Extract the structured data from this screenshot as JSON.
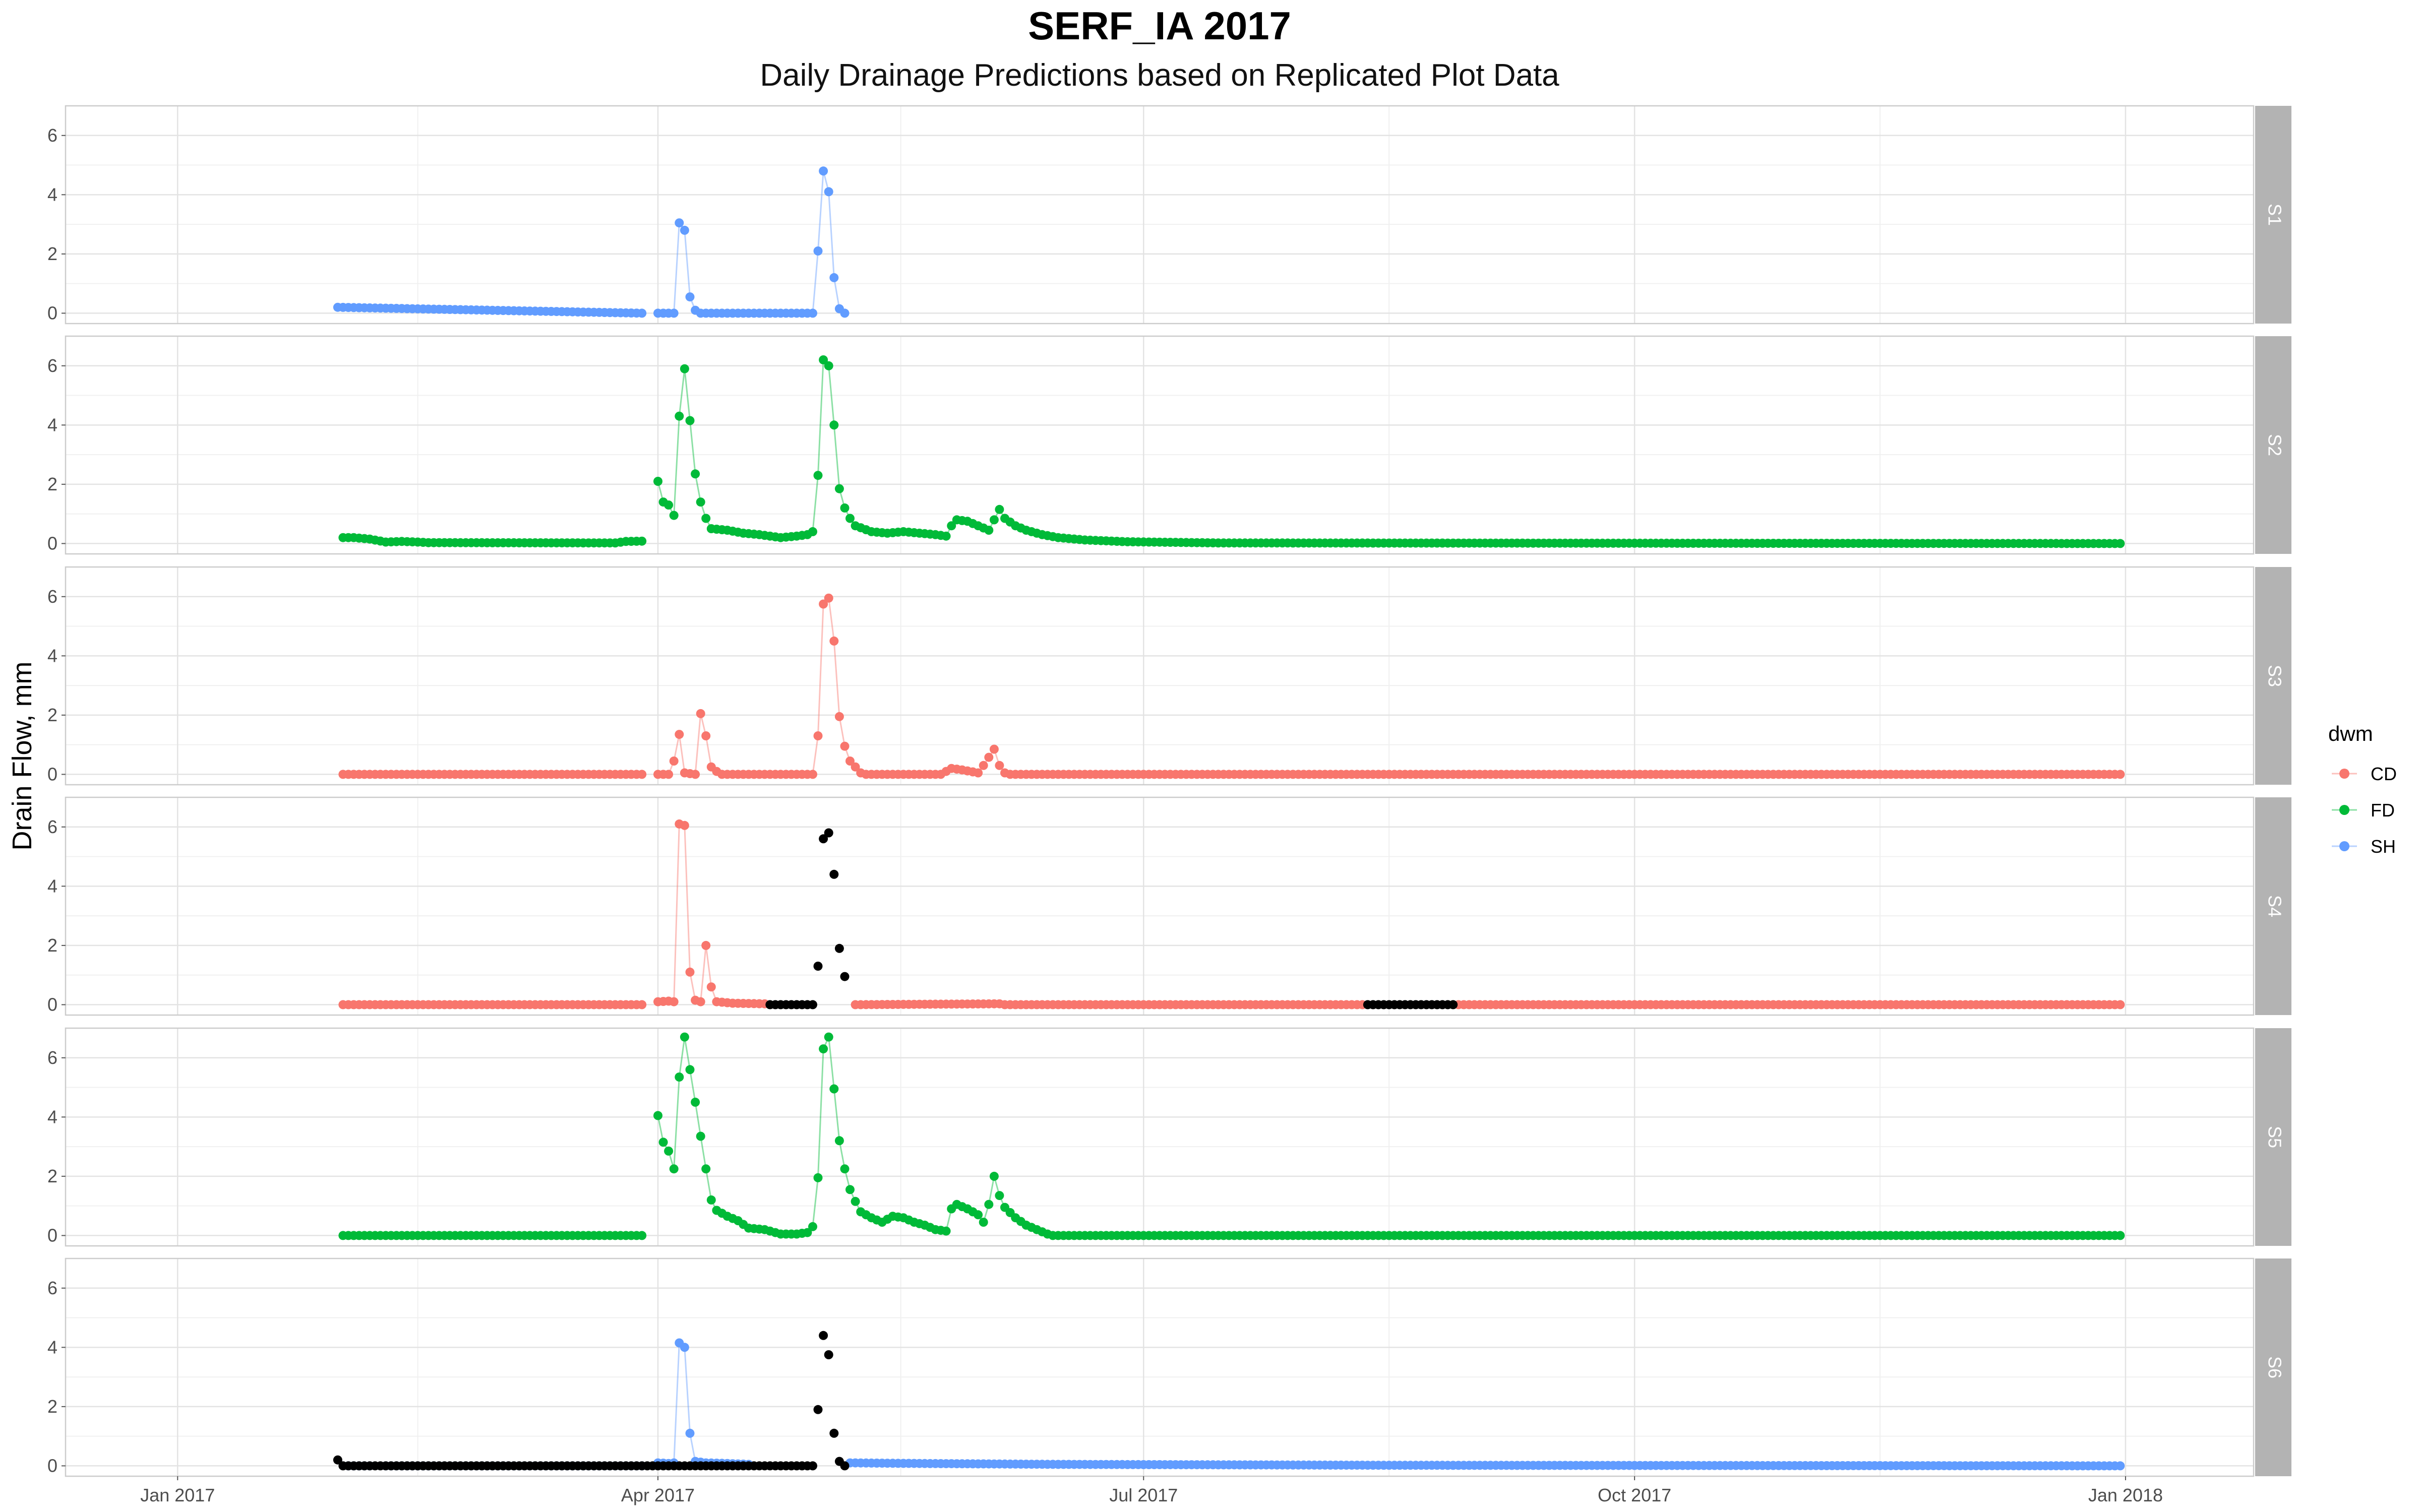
{
  "chart_data": {
    "type": "line",
    "title": "SERF_IA 2017",
    "subtitle": "Daily Drainage Predictions based on Replicated Plot Data",
    "ylabel": "Drain Flow, mm",
    "xlabel": "",
    "x_ticks": [
      "Jan 2017",
      "Apr 2017",
      "Jul 2017",
      "Oct 2017",
      "Jan 2018"
    ],
    "x_range": [
      "2016-12-11",
      "2018-01-25"
    ],
    "ylim": [
      -0.35,
      7
    ],
    "y_ticks": [
      0,
      2,
      4,
      6
    ],
    "grid": true,
    "legend": {
      "title": "dwm",
      "placement": "right",
      "items": [
        {
          "label": "CD",
          "color": "#F8766D"
        },
        {
          "label": "FD",
          "color": "#00BA38"
        },
        {
          "label": "SH",
          "color": "#619CFF"
        }
      ]
    },
    "missing_color": "#000000",
    "series_start": "2017-02-01",
    "series_end": "2017-12-31",
    "panels": [
      {
        "label": "S1",
        "dwm": "SH",
        "values": [
          [
            "2017-01-31",
            0.2
          ],
          [
            "2017-03-29",
            0
          ],
          [
            "2017-03-30",
            null
          ],
          [
            "2017-04-01",
            0
          ],
          [
            "2017-04-04",
            0
          ],
          [
            "2017-04-05",
            3.05
          ],
          [
            "2017-04-06",
            2.8
          ],
          [
            "2017-04-07",
            0.55
          ],
          [
            "2017-04-08",
            0.1
          ],
          [
            "2017-04-09",
            0
          ],
          [
            "2017-04-30",
            0
          ],
          [
            "2017-05-01",
            2.1
          ],
          [
            "2017-05-02",
            4.8
          ],
          [
            "2017-05-03",
            4.1
          ],
          [
            "2017-05-04",
            1.2
          ],
          [
            "2017-05-05",
            0.15
          ],
          [
            "2017-05-06",
            0
          ]
        ],
        "missing": []
      },
      {
        "label": "S2",
        "dwm": "FD",
        "values": [
          [
            "2017-02-01",
            0.2
          ],
          [
            "2017-02-03",
            0.2
          ],
          [
            "2017-02-06",
            0.15
          ],
          [
            "2017-02-09",
            0.05
          ],
          [
            "2017-02-12",
            0.07
          ],
          [
            "2017-02-15",
            0.05
          ],
          [
            "2017-02-17",
            0.03
          ],
          [
            "2017-03-24",
            0.02
          ],
          [
            "2017-03-26",
            0.07
          ],
          [
            "2017-03-29",
            0.08
          ],
          [
            "2017-03-30",
            null
          ],
          [
            "2017-04-01",
            2.1
          ],
          [
            "2017-04-02",
            1.4
          ],
          [
            "2017-04-03",
            1.3
          ],
          [
            "2017-04-04",
            0.95
          ],
          [
            "2017-04-05",
            4.3
          ],
          [
            "2017-04-06",
            5.9
          ],
          [
            "2017-04-07",
            4.15
          ],
          [
            "2017-04-08",
            2.35
          ],
          [
            "2017-04-09",
            1.4
          ],
          [
            "2017-04-10",
            0.85
          ],
          [
            "2017-04-11",
            0.5
          ],
          [
            "2017-04-14",
            0.45
          ],
          [
            "2017-04-17",
            0.35
          ],
          [
            "2017-04-20",
            0.3
          ],
          [
            "2017-04-24",
            0.2
          ],
          [
            "2017-04-27",
            0.25
          ],
          [
            "2017-04-29",
            0.3
          ],
          [
            "2017-04-30",
            0.4
          ],
          [
            "2017-05-01",
            2.3
          ],
          [
            "2017-05-02",
            6.2
          ],
          [
            "2017-05-03",
            6
          ],
          [
            "2017-05-04",
            4
          ],
          [
            "2017-05-05",
            1.85
          ],
          [
            "2017-05-06",
            1.2
          ],
          [
            "2017-05-07",
            0.85
          ],
          [
            "2017-05-08",
            0.6
          ],
          [
            "2017-05-11",
            0.4
          ],
          [
            "2017-05-14",
            0.35
          ],
          [
            "2017-05-17",
            0.4
          ],
          [
            "2017-05-20",
            0.35
          ],
          [
            "2017-05-23",
            0.3
          ],
          [
            "2017-05-25",
            0.25
          ],
          [
            "2017-05-26",
            0.6
          ],
          [
            "2017-05-27",
            0.8
          ],
          [
            "2017-05-29",
            0.75
          ],
          [
            "2017-05-31",
            0.6
          ],
          [
            "2017-06-02",
            0.45
          ],
          [
            "2017-06-03",
            0.8
          ],
          [
            "2017-06-04",
            1.15
          ],
          [
            "2017-06-05",
            0.85
          ],
          [
            "2017-06-07",
            0.6
          ],
          [
            "2017-06-09",
            0.45
          ],
          [
            "2017-06-12",
            0.3
          ],
          [
            "2017-06-15",
            0.2
          ],
          [
            "2017-06-20",
            0.12
          ],
          [
            "2017-06-28",
            0.06
          ],
          [
            "2017-07-15",
            0.02
          ],
          [
            "2017-12-31",
            0
          ]
        ],
        "missing": []
      },
      {
        "label": "S3",
        "dwm": "CD",
        "values": [
          [
            "2017-02-01",
            0
          ],
          [
            "2017-03-29",
            0
          ],
          [
            "2017-03-30",
            null
          ],
          [
            "2017-04-01",
            0
          ],
          [
            "2017-04-03",
            0
          ],
          [
            "2017-04-04",
            0.45
          ],
          [
            "2017-04-05",
            1.35
          ],
          [
            "2017-04-06",
            0.05
          ],
          [
            "2017-04-08",
            0
          ],
          [
            "2017-04-09",
            2.05
          ],
          [
            "2017-04-10",
            1.3
          ],
          [
            "2017-04-11",
            0.25
          ],
          [
            "2017-04-12",
            0.1
          ],
          [
            "2017-04-13",
            0
          ],
          [
            "2017-04-30",
            0
          ],
          [
            "2017-05-01",
            1.3
          ],
          [
            "2017-05-02",
            5.75
          ],
          [
            "2017-05-03",
            5.95
          ],
          [
            "2017-05-04",
            4.5
          ],
          [
            "2017-05-05",
            1.95
          ],
          [
            "2017-05-06",
            0.95
          ],
          [
            "2017-05-07",
            0.45
          ],
          [
            "2017-05-08",
            0.25
          ],
          [
            "2017-05-09",
            0.05
          ],
          [
            "2017-05-10",
            0
          ],
          [
            "2017-05-24",
            0
          ],
          [
            "2017-05-26",
            0.2
          ],
          [
            "2017-05-28",
            0.15
          ],
          [
            "2017-05-31",
            0.05
          ],
          [
            "2017-06-01",
            0.3
          ],
          [
            "2017-06-03",
            0.85
          ],
          [
            "2017-06-04",
            0.3
          ],
          [
            "2017-06-05",
            0.05
          ],
          [
            "2017-06-06",
            0
          ],
          [
            "2017-12-31",
            0
          ]
        ],
        "missing": []
      },
      {
        "label": "S4",
        "dwm": "CD",
        "values": [
          [
            "2017-02-01",
            0
          ],
          [
            "2017-03-29",
            0
          ],
          [
            "2017-03-30",
            null
          ],
          [
            "2017-04-01",
            0.1
          ],
          [
            "2017-04-03",
            0.12
          ],
          [
            "2017-04-04",
            0.1
          ],
          [
            "2017-04-05",
            6.1
          ],
          [
            "2017-04-06",
            6.05
          ],
          [
            "2017-04-07",
            1.1
          ],
          [
            "2017-04-08",
            0.15
          ],
          [
            "2017-04-09",
            0.1
          ],
          [
            "2017-04-10",
            2
          ],
          [
            "2017-04-11",
            0.6
          ],
          [
            "2017-04-12",
            0.1
          ],
          [
            "2017-04-15",
            0.05
          ],
          [
            "2017-04-21",
            0.03
          ],
          [
            "2017-04-22",
            null
          ],
          [
            "2017-05-07",
            null
          ],
          [
            "2017-05-08",
            0
          ],
          [
            "2017-06-04",
            0.03
          ],
          [
            "2017-06-05",
            0
          ],
          [
            "2017-08-11",
            0
          ],
          [
            "2017-08-12",
            null
          ],
          [
            "2017-08-28",
            null
          ],
          [
            "2017-08-29",
            0
          ],
          [
            "2017-12-31",
            0
          ]
        ],
        "missing": [
          [
            "2017-04-22",
            0
          ],
          [
            "2017-04-30",
            0
          ],
          [
            "2017-05-01",
            1.3
          ],
          [
            "2017-05-02",
            5.6
          ],
          [
            "2017-05-03",
            5.8
          ],
          [
            "2017-05-04",
            4.4
          ],
          [
            "2017-05-05",
            1.9
          ],
          [
            "2017-05-06",
            0.95
          ],
          [
            "2017-08-12",
            0
          ],
          [
            "2017-08-28",
            0
          ]
        ]
      },
      {
        "label": "S5",
        "dwm": "FD",
        "values": [
          [
            "2017-02-01",
            0
          ],
          [
            "2017-03-29",
            0
          ],
          [
            "2017-03-30",
            null
          ],
          [
            "2017-04-01",
            4.05
          ],
          [
            "2017-04-02",
            3.15
          ],
          [
            "2017-04-03",
            2.85
          ],
          [
            "2017-04-04",
            2.25
          ],
          [
            "2017-04-05",
            5.35
          ],
          [
            "2017-04-06",
            6.7
          ],
          [
            "2017-04-07",
            5.6
          ],
          [
            "2017-04-08",
            4.5
          ],
          [
            "2017-04-09",
            3.35
          ],
          [
            "2017-04-10",
            2.25
          ],
          [
            "2017-04-11",
            1.2
          ],
          [
            "2017-04-12",
            0.85
          ],
          [
            "2017-04-14",
            0.65
          ],
          [
            "2017-04-16",
            0.5
          ],
          [
            "2017-04-18",
            0.25
          ],
          [
            "2017-04-21",
            0.2
          ],
          [
            "2017-04-24",
            0.05
          ],
          [
            "2017-04-27",
            0.05
          ],
          [
            "2017-04-29",
            0.1
          ],
          [
            "2017-04-30",
            0.3
          ],
          [
            "2017-05-01",
            1.95
          ],
          [
            "2017-05-02",
            6.3
          ],
          [
            "2017-05-03",
            6.7
          ],
          [
            "2017-05-04",
            4.95
          ],
          [
            "2017-05-05",
            3.2
          ],
          [
            "2017-05-06",
            2.25
          ],
          [
            "2017-05-07",
            1.55
          ],
          [
            "2017-05-08",
            1.15
          ],
          [
            "2017-05-09",
            0.8
          ],
          [
            "2017-05-11",
            0.6
          ],
          [
            "2017-05-13",
            0.45
          ],
          [
            "2017-05-15",
            0.65
          ],
          [
            "2017-05-17",
            0.6
          ],
          [
            "2017-05-19",
            0.45
          ],
          [
            "2017-05-21",
            0.35
          ],
          [
            "2017-05-23",
            0.2
          ],
          [
            "2017-05-25",
            0.15
          ],
          [
            "2017-05-26",
            0.9
          ],
          [
            "2017-05-27",
            1.05
          ],
          [
            "2017-05-29",
            0.9
          ],
          [
            "2017-05-31",
            0.7
          ],
          [
            "2017-06-01",
            0.45
          ],
          [
            "2017-06-02",
            1.05
          ],
          [
            "2017-06-03",
            2
          ],
          [
            "2017-06-04",
            1.35
          ],
          [
            "2017-06-05",
            0.95
          ],
          [
            "2017-06-07",
            0.6
          ],
          [
            "2017-06-09",
            0.35
          ],
          [
            "2017-06-11",
            0.2
          ],
          [
            "2017-06-13",
            0.05
          ],
          [
            "2017-06-14",
            0
          ],
          [
            "2017-12-31",
            0
          ]
        ],
        "missing": []
      },
      {
        "label": "S6",
        "dwm": "SH",
        "values": [
          [
            "2017-02-02",
            0
          ],
          [
            "2017-02-06",
            0
          ],
          [
            "2017-02-07",
            null
          ],
          [
            "2017-02-08",
            null
          ],
          [
            "2017-02-09",
            0
          ],
          [
            "2017-03-29",
            0
          ],
          [
            "2017-03-30",
            null
          ],
          [
            "2017-04-01",
            0.1
          ],
          [
            "2017-04-03",
            0.08
          ],
          [
            "2017-04-04",
            0.1
          ],
          [
            "2017-04-05",
            4.15
          ],
          [
            "2017-04-06",
            4
          ],
          [
            "2017-04-07",
            1.1
          ],
          [
            "2017-04-08",
            0.15
          ],
          [
            "2017-04-10",
            0.1
          ],
          [
            "2017-04-14",
            0.08
          ],
          [
            "2017-04-18",
            0.05
          ],
          [
            "2017-04-19",
            null
          ],
          [
            "2017-05-06",
            null
          ],
          [
            "2017-05-07",
            0.1
          ],
          [
            "2017-05-20",
            0.08
          ],
          [
            "2017-06-15",
            0.05
          ],
          [
            "2017-08-15",
            0.02
          ],
          [
            "2017-12-31",
            0
          ]
        ],
        "missing": [
          [
            "2017-01-31",
            0.2
          ],
          [
            "2017-02-01",
            0
          ],
          [
            "2017-02-07",
            0
          ],
          [
            "2017-02-08",
            0
          ],
          [
            "2017-04-19",
            0
          ],
          [
            "2017-04-30",
            0
          ],
          [
            "2017-05-01",
            1.9
          ],
          [
            "2017-05-02",
            4.4
          ],
          [
            "2017-05-03",
            3.75
          ],
          [
            "2017-05-04",
            1.1
          ],
          [
            "2017-05-05",
            0.15
          ],
          [
            "2017-05-06",
            0
          ]
        ]
      }
    ]
  }
}
